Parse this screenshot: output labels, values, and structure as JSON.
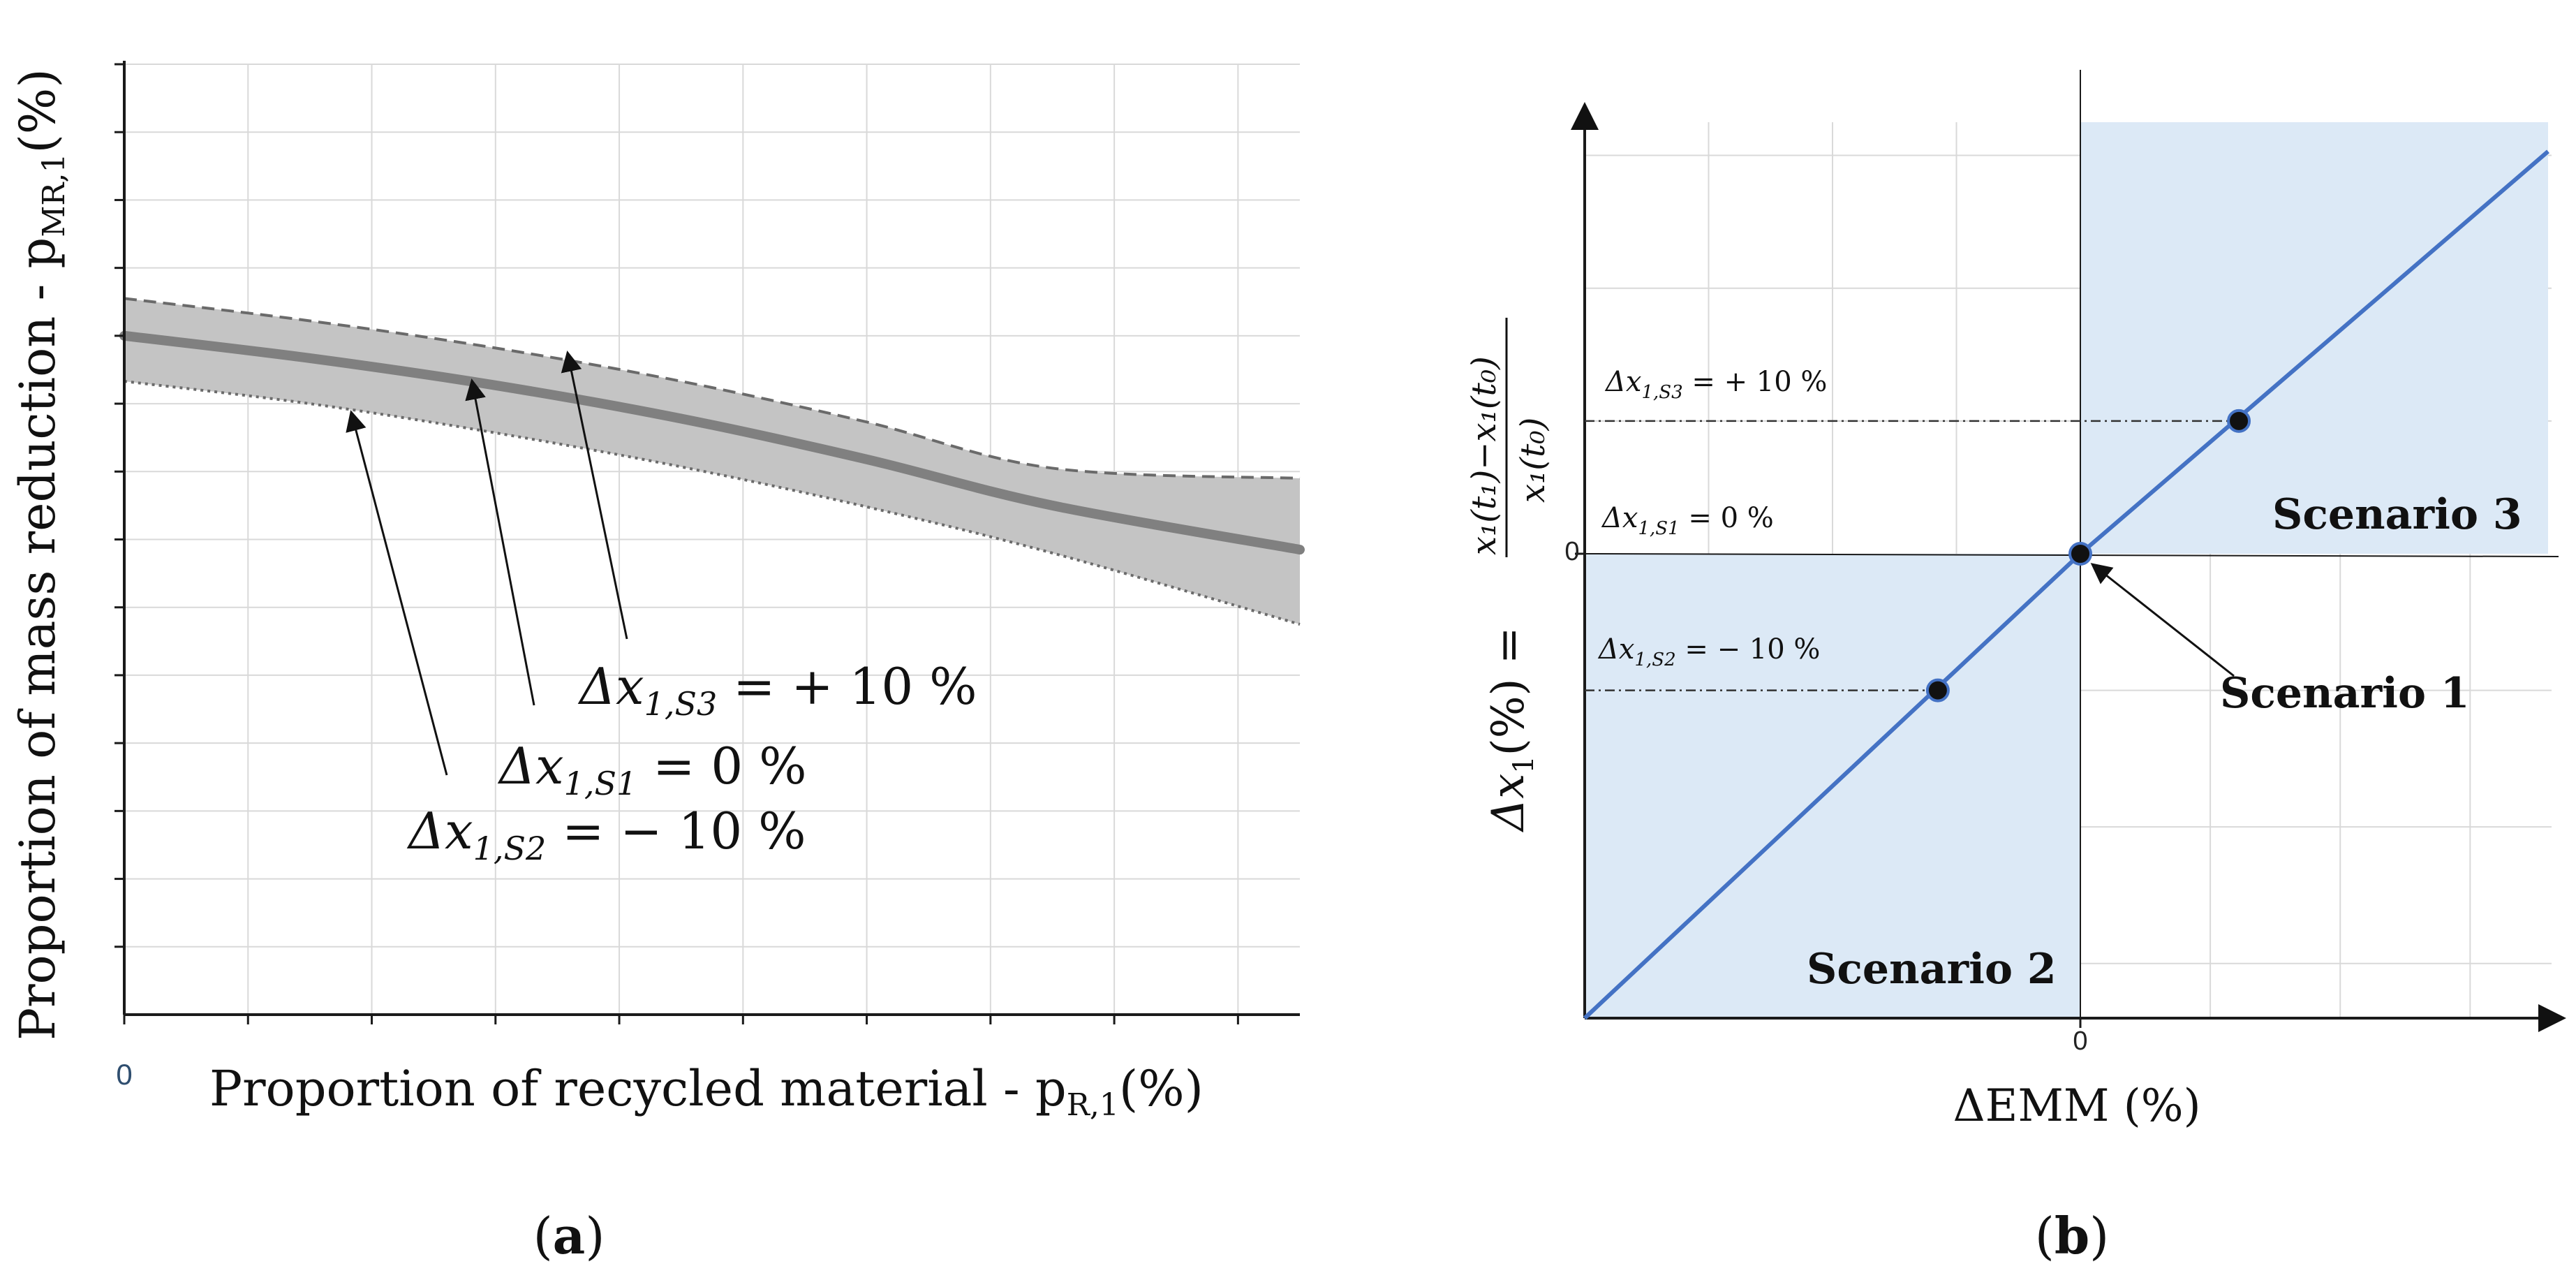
{
  "colors": {
    "band_fill": "#c4c4c4",
    "band_edge": "#6a6a6a",
    "center_line": "#808080",
    "grid": "#d9d9d9",
    "axis": "#1a1a1a",
    "diag_line": "#4472c4",
    "scenario_fill": "#dce9f6",
    "tick_zero_a": "#2f4e6f"
  },
  "chart_data": [
    {
      "id": "panel-a",
      "type": "area",
      "panel_label": "a",
      "xlabel": "Proportion of recycled material - p",
      "xlabel_sub": "R,1",
      "xlabel_unit": "(%)",
      "ylabel": "Proportion of mass reduction - p",
      "ylabel_sub": "MR,1",
      "ylabel_unit": "(%)",
      "x_tick_label": "0",
      "xlim": [
        0,
        9.5
      ],
      "ylim": [
        0,
        14
      ],
      "grid": true,
      "x_gridlines": [
        1,
        2,
        3,
        4,
        5,
        6,
        7,
        8,
        9
      ],
      "y_gridlines": [
        1,
        2,
        3,
        4,
        5,
        6,
        7,
        8,
        9,
        10,
        11,
        12,
        13,
        14
      ],
      "series": [
        {
          "name": "Δx1,S3 = + 10 %",
          "style": "dashed",
          "x": [
            0,
            1.5,
            3,
            4.5,
            6,
            7.5,
            9.5
          ],
          "y": [
            10.55,
            10.22,
            9.82,
            9.33,
            8.73,
            8.05,
            7.9
          ]
        },
        {
          "name": "Δx1,S1 = 0 %",
          "style": "solid",
          "x": [
            0,
            1.5,
            3,
            4.5,
            6,
            7.5,
            9.5
          ],
          "y": [
            10.0,
            9.67,
            9.27,
            8.78,
            8.18,
            7.5,
            6.85
          ]
        },
        {
          "name": "Δx1,S2 = − 10 %",
          "style": "dotted",
          "x": [
            0,
            1.5,
            3,
            4.5,
            6,
            7.5,
            9.5
          ],
          "y": [
            9.33,
            9.0,
            8.57,
            8.07,
            7.48,
            6.8,
            5.75
          ]
        }
      ],
      "annotations": [
        {
          "base": "Δx",
          "sub": "1,S3",
          "rest": " = + 10 %",
          "points_to": "Δx1,S3 = + 10 %"
        },
        {
          "base": "Δx",
          "sub": "1,S1",
          "rest": " =  0 %",
          "points_to": "Δx1,S1 = 0 %"
        },
        {
          "base": "Δx",
          "sub": "1,S2",
          "rest": " = − 10 %",
          "points_to": "Δx1,S2 = − 10 %"
        }
      ]
    },
    {
      "id": "panel-b",
      "type": "line",
      "panel_label": "b",
      "xlabel": "ΔEMM (%)",
      "ylabel_base": "Δx",
      "ylabel_sub": "1",
      "ylabel_unit": "(%) =",
      "ylabel_fraction_num": "x₁(t₁)−x₁(t₀)",
      "ylabel_fraction_den": "x₁(t₀)",
      "x_tick_label": "0",
      "y_tick_label": "0",
      "xlim": [
        -4,
        4
      ],
      "ylim": [
        -3.4,
        3.4
      ],
      "grid": true,
      "x_gridlines": [
        -3,
        -2,
        -1,
        1,
        2,
        3
      ],
      "y_gridlines": [
        -3,
        -2,
        -1,
        1,
        2,
        3
      ],
      "line": {
        "x": [
          -4,
          3.6
        ],
        "y": [
          -3.4,
          3.03
        ]
      },
      "shaded_regions": [
        {
          "name": "Scenario 2",
          "x": [
            -4,
            0
          ],
          "y": [
            -3.4,
            0
          ]
        },
        {
          "name": "Scenario 3",
          "x": [
            0,
            3.6
          ],
          "y": [
            0,
            3.25
          ]
        }
      ],
      "points": [
        {
          "name": "S3",
          "x": 1.22,
          "y": 1.0,
          "label_base": "Δx",
          "label_sub": "1,S3",
          "label_rest": " = + 10 %"
        },
        {
          "name": "S1",
          "x": 0.0,
          "y": 0.0,
          "label_base": "Δx",
          "label_sub": "1,S1",
          "label_rest": " = 0 %"
        },
        {
          "name": "S2",
          "x": -1.15,
          "y": -1.0,
          "label_base": "Δx",
          "label_sub": "1,S2",
          "label_rest": " = − 10 %"
        }
      ],
      "scenario_labels": {
        "s1": "Scenario 1",
        "s2": "Scenario 2",
        "s3": "Scenario 3"
      }
    }
  ]
}
